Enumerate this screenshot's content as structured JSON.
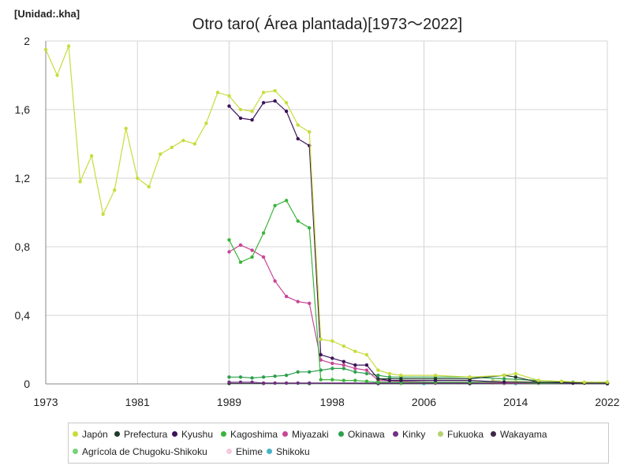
{
  "unit_label": "[Unidad:.kha]",
  "chart_data": {
    "type": "line",
    "title": "Otro taro( Área plantada)[1973～2022]",
    "xlabel": "",
    "ylabel": "",
    "xlim": [
      1973,
      2022
    ],
    "ylim": [
      0,
      2
    ],
    "x_ticks": [
      1973,
      1981,
      1989,
      1998,
      2006,
      2014,
      2022
    ],
    "x_tick_labels": [
      "1973",
      "1981",
      "1989",
      "1998",
      "2006",
      "2014",
      "2022"
    ],
    "y_ticks": [
      0,
      0.4,
      0.8,
      1.2,
      1.6,
      2
    ],
    "y_tick_labels": [
      "0",
      "0,4",
      "0,8",
      "1,2",
      "1,6",
      "2"
    ],
    "grid": true,
    "legend_position": "bottom",
    "series": [
      {
        "name": "Japón",
        "color": "#c8dc3c",
        "points": [
          [
            1973,
            1.95
          ],
          [
            1974,
            1.8
          ],
          [
            1975,
            1.97
          ],
          [
            1976,
            1.18
          ],
          [
            1977,
            1.33
          ],
          [
            1978,
            0.99
          ],
          [
            1979,
            1.13
          ],
          [
            1980,
            1.49
          ],
          [
            1981,
            1.2
          ],
          [
            1982,
            1.15
          ],
          [
            1983,
            1.34
          ],
          [
            1984,
            1.38
          ],
          [
            1985,
            1.42
          ],
          [
            1986,
            1.4
          ],
          [
            1987,
            1.52
          ],
          [
            1988,
            1.7
          ],
          [
            1989,
            1.68
          ],
          [
            1990,
            1.6
          ],
          [
            1991,
            1.59
          ],
          [
            1992,
            1.7
          ],
          [
            1993,
            1.71
          ],
          [
            1994,
            1.64
          ],
          [
            1995,
            1.51
          ],
          [
            1996,
            1.47
          ],
          [
            1997,
            0.26
          ],
          [
            1998,
            0.25
          ],
          [
            1999,
            0.22
          ],
          [
            2000,
            0.19
          ],
          [
            2001,
            0.17
          ],
          [
            2002,
            0.08
          ],
          [
            2003,
            0.06
          ],
          [
            2004,
            0.05
          ],
          [
            2007,
            0.05
          ],
          [
            2010,
            0.04
          ],
          [
            2013,
            0.05
          ],
          [
            2014,
            0.06
          ],
          [
            2016,
            0.02
          ],
          [
            2018,
            0.015
          ],
          [
            2020,
            0.01
          ],
          [
            2022,
            0.01
          ]
        ]
      },
      {
        "name": "Prefectura",
        "color": "#1f3a2a",
        "points": [
          [
            2002,
            0.03
          ],
          [
            2004,
            0.03
          ],
          [
            2007,
            0.03
          ],
          [
            2010,
            0.03
          ],
          [
            2013,
            0.05
          ],
          [
            2014,
            0.04
          ],
          [
            2016,
            0.01
          ],
          [
            2018,
            0.01
          ],
          [
            2020,
            0.005
          ],
          [
            2022,
            0.005
          ]
        ]
      },
      {
        "name": "Kyushu",
        "color": "#3c145a",
        "points": [
          [
            1989,
            1.62
          ],
          [
            1990,
            1.55
          ],
          [
            1991,
            1.54
          ],
          [
            1992,
            1.64
          ],
          [
            1993,
            1.65
          ],
          [
            1994,
            1.59
          ],
          [
            1995,
            1.43
          ],
          [
            1996,
            1.39
          ],
          [
            1997,
            0.17
          ],
          [
            1998,
            0.15
          ],
          [
            1999,
            0.13
          ],
          [
            2000,
            0.11
          ],
          [
            2001,
            0.11
          ],
          [
            2002,
            0.03
          ],
          [
            2003,
            0.02
          ],
          [
            2004,
            0.02
          ],
          [
            2007,
            0.02
          ],
          [
            2010,
            0.02
          ],
          [
            2013,
            0.01
          ],
          [
            2016,
            0.01
          ],
          [
            2019,
            0.005
          ],
          [
            2022,
            0.005
          ]
        ]
      },
      {
        "name": "Kagoshima",
        "color": "#3cb43c",
        "points": [
          [
            1989,
            0.84
          ],
          [
            1990,
            0.71
          ],
          [
            1991,
            0.74
          ],
          [
            1992,
            0.88
          ],
          [
            1993,
            1.04
          ],
          [
            1994,
            1.07
          ],
          [
            1995,
            0.95
          ],
          [
            1996,
            0.91
          ],
          [
            1997,
            0.025
          ],
          [
            1998,
            0.025
          ],
          [
            1999,
            0.02
          ],
          [
            2000,
            0.02
          ],
          [
            2001,
            0.015
          ],
          [
            2002,
            0.01
          ],
          [
            2004,
            0.01
          ],
          [
            2007,
            0.01
          ],
          [
            2010,
            0.01
          ],
          [
            2013,
            0.01
          ],
          [
            2016,
            0.005
          ],
          [
            2019,
            0.005
          ],
          [
            2022,
            0.005
          ]
        ]
      },
      {
        "name": "Miyazaki",
        "color": "#c84696",
        "points": [
          [
            1989,
            0.77
          ],
          [
            1990,
            0.81
          ],
          [
            1991,
            0.78
          ],
          [
            1992,
            0.74
          ],
          [
            1993,
            0.6
          ],
          [
            1994,
            0.51
          ],
          [
            1995,
            0.48
          ],
          [
            1996,
            0.47
          ],
          [
            1997,
            0.14
          ],
          [
            1998,
            0.12
          ],
          [
            1999,
            0.11
          ],
          [
            2000,
            0.09
          ],
          [
            2001,
            0.08
          ],
          [
            2002,
            0.02
          ],
          [
            2004,
            0.015
          ],
          [
            2007,
            0.01
          ],
          [
            2010,
            0.01
          ],
          [
            2013,
            0.005
          ],
          [
            2016,
            0.005
          ],
          [
            2019,
            0.005
          ],
          [
            2022,
            0.005
          ]
        ]
      },
      {
        "name": "Okinawa",
        "color": "#2ea04e",
        "points": [
          [
            1989,
            0.04
          ],
          [
            1990,
            0.04
          ],
          [
            1991,
            0.035
          ],
          [
            1992,
            0.04
          ],
          [
            1993,
            0.045
          ],
          [
            1994,
            0.05
          ],
          [
            1995,
            0.07
          ],
          [
            1996,
            0.07
          ],
          [
            1997,
            0.08
          ],
          [
            1998,
            0.09
          ],
          [
            1999,
            0.09
          ],
          [
            2000,
            0.07
          ],
          [
            2001,
            0.06
          ],
          [
            2002,
            0.05
          ],
          [
            2003,
            0.04
          ],
          [
            2004,
            0.04
          ],
          [
            2007,
            0.04
          ],
          [
            2010,
            0.04
          ],
          [
            2013,
            0.03
          ],
          [
            2016,
            0.02
          ],
          [
            2019,
            0.01
          ],
          [
            2022,
            0.01
          ]
        ]
      },
      {
        "name": "Kinky",
        "color": "#6e3282",
        "points": [
          [
            1989,
            0.01
          ],
          [
            1990,
            0.01
          ],
          [
            1991,
            0.01
          ],
          [
            1992,
            0.005
          ],
          [
            1993,
            0.005
          ],
          [
            1994,
            0.005
          ],
          [
            1995,
            0.005
          ],
          [
            1996,
            0.005
          ],
          [
            2002,
            0.005
          ],
          [
            2007,
            0.005
          ],
          [
            2013,
            0.005
          ],
          [
            2022,
            0.002
          ]
        ]
      },
      {
        "name": "Fukuoka",
        "color": "#b4d26e",
        "points": [
          [
            2012,
            0.02
          ],
          [
            2014,
            0.015
          ],
          [
            2016,
            0.01
          ],
          [
            2019,
            0.005
          ],
          [
            2022,
            0.005
          ]
        ]
      },
      {
        "name": "Wakayama",
        "color": "#3c2846",
        "points": [
          [
            1989,
            0.003
          ],
          [
            1992,
            0.003
          ],
          [
            1996,
            0.003
          ],
          [
            2002,
            0.002
          ],
          [
            2010,
            0.002
          ],
          [
            2022,
            0.001
          ]
        ]
      },
      {
        "name": "Agrícola de Chugoku-Shikoku",
        "color": "#78d278",
        "points": [
          [
            1989,
            0.002
          ],
          [
            1996,
            0.002
          ],
          [
            2004,
            0.002
          ],
          [
            2013,
            0.002
          ],
          [
            2022,
            0.001
          ]
        ]
      },
      {
        "name": "Ehime",
        "color": "#f5c8dc",
        "points": [
          [
            2009,
            0.004
          ],
          [
            2012,
            0.003
          ],
          [
            2016,
            0.002
          ],
          [
            2022,
            0.001
          ]
        ]
      },
      {
        "name": "Shikoku",
        "color": "#46b4c8",
        "points": [
          [
            2006,
            0.002
          ],
          [
            2014,
            0.002
          ],
          [
            2022,
            0.001
          ]
        ]
      }
    ]
  }
}
